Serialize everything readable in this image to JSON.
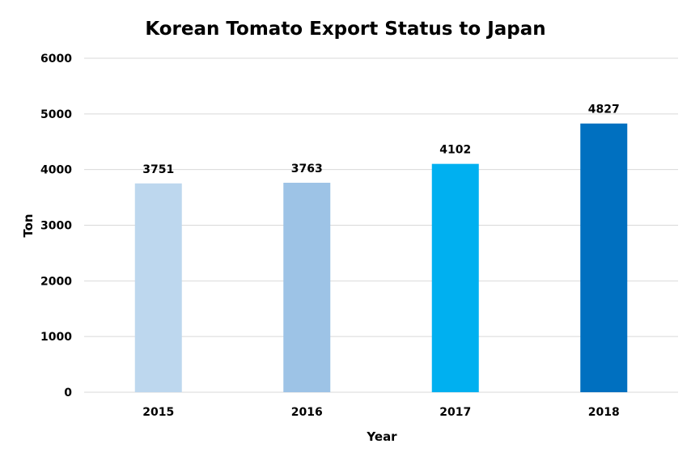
{
  "chart_data": {
    "type": "bar",
    "title": "Korean Tomato Export Status to Japan",
    "xlabel": "Year",
    "ylabel": "Ton",
    "categories": [
      "2015",
      "2016",
      "2017",
      "2018"
    ],
    "values": [
      3751,
      3763,
      4102,
      4827
    ],
    "data_labels": [
      "3751",
      "3763",
      "4102",
      "4827"
    ],
    "bar_colors": [
      "#bdd7ee",
      "#9dc3e6",
      "#00b0f0",
      "#0070c0"
    ],
    "ylim": [
      0,
      6000
    ],
    "yticks": [
      0,
      1000,
      2000,
      3000,
      4000,
      5000,
      6000
    ],
    "ytick_labels": [
      "0",
      "1000",
      "2000",
      "3000",
      "4000",
      "5000",
      "6000"
    ],
    "grid": true,
    "legend": "none"
  }
}
